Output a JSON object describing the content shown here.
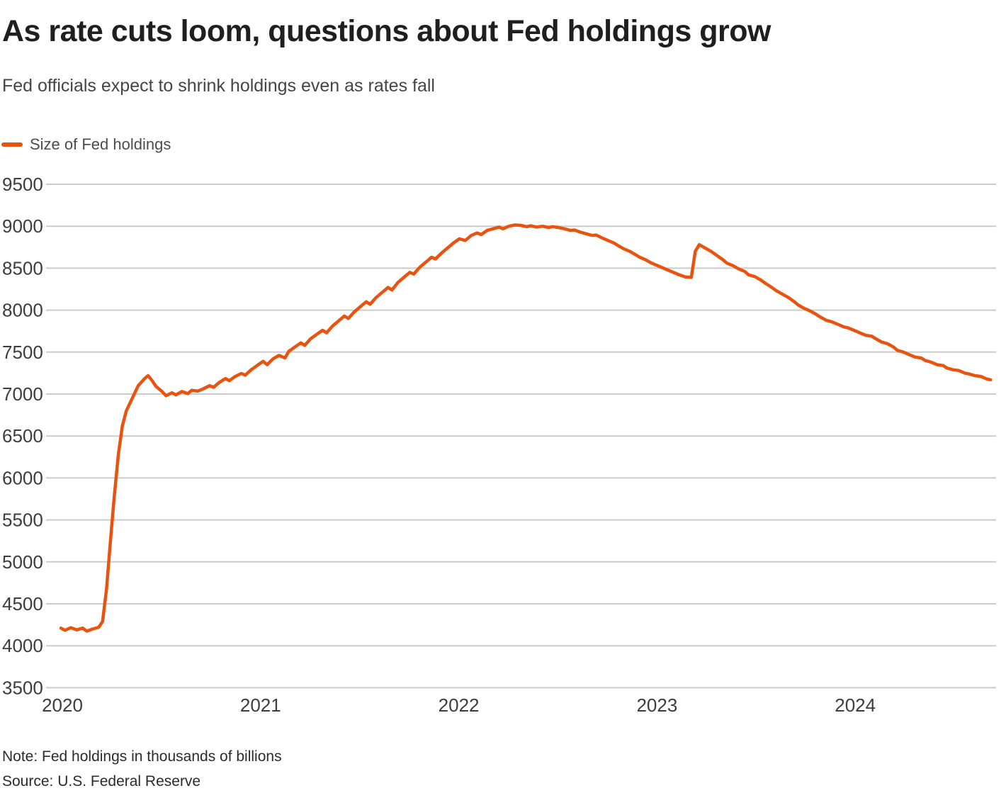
{
  "header": {
    "title": "As rate cuts loom, questions about Fed holdings grow",
    "subtitle": "Fed officials expect to shrink holdings even as rates fall"
  },
  "legend": {
    "label": "Size of Fed holdings"
  },
  "footer": {
    "note": "Note: Fed holdings in thousands of billions",
    "source": "Source: U.S. Federal Reserve"
  },
  "colors": {
    "line": "#E8540F",
    "grid": "#CBCBCB",
    "axis_text": "#3D3D3D"
  },
  "chart_data": {
    "type": "line",
    "title": "Size of Fed holdings",
    "xlabel": "",
    "ylabel": "Fed holdings in thousands of billions",
    "ylim": [
      3500,
      9500
    ],
    "xlim": [
      2020.0,
      2024.72
    ],
    "y_ticks": [
      3500,
      4000,
      4500,
      5000,
      5500,
      6000,
      6500,
      7000,
      7500,
      8000,
      8500,
      9000,
      9500
    ],
    "x_ticks": [
      2020,
      2021,
      2022,
      2023,
      2024
    ],
    "grid": true,
    "legend_position": "top-left",
    "series": [
      {
        "name": "Size of Fed holdings",
        "color": "#E8540F",
        "points": [
          [
            2020.0,
            4210
          ],
          [
            2020.02,
            4185
          ],
          [
            2020.05,
            4215
          ],
          [
            2020.08,
            4190
          ],
          [
            2020.11,
            4210
          ],
          [
            2020.13,
            4175
          ],
          [
            2020.16,
            4200
          ],
          [
            2020.19,
            4220
          ],
          [
            2020.21,
            4290
          ],
          [
            2020.23,
            4680
          ],
          [
            2020.25,
            5250
          ],
          [
            2020.27,
            5800
          ],
          [
            2020.29,
            6280
          ],
          [
            2020.31,
            6620
          ],
          [
            2020.33,
            6800
          ],
          [
            2020.36,
            6950
          ],
          [
            2020.39,
            7100
          ],
          [
            2020.42,
            7180
          ],
          [
            2020.44,
            7220
          ],
          [
            2020.46,
            7160
          ],
          [
            2020.48,
            7090
          ],
          [
            2020.51,
            7030
          ],
          [
            2020.53,
            6980
          ],
          [
            2020.56,
            7015
          ],
          [
            2020.58,
            6990
          ],
          [
            2020.61,
            7030
          ],
          [
            2020.64,
            7005
          ],
          [
            2020.66,
            7045
          ],
          [
            2020.69,
            7035
          ],
          [
            2020.72,
            7065
          ],
          [
            2020.75,
            7100
          ],
          [
            2020.77,
            7080
          ],
          [
            2020.8,
            7140
          ],
          [
            2020.83,
            7185
          ],
          [
            2020.85,
            7160
          ],
          [
            2020.88,
            7210
          ],
          [
            2020.91,
            7245
          ],
          [
            2020.93,
            7225
          ],
          [
            2020.96,
            7290
          ],
          [
            2020.99,
            7340
          ],
          [
            2021.02,
            7390
          ],
          [
            2021.04,
            7350
          ],
          [
            2021.07,
            7420
          ],
          [
            2021.1,
            7460
          ],
          [
            2021.13,
            7430
          ],
          [
            2021.15,
            7510
          ],
          [
            2021.18,
            7560
          ],
          [
            2021.21,
            7610
          ],
          [
            2021.23,
            7580
          ],
          [
            2021.26,
            7660
          ],
          [
            2021.29,
            7710
          ],
          [
            2021.32,
            7760
          ],
          [
            2021.34,
            7730
          ],
          [
            2021.37,
            7810
          ],
          [
            2021.4,
            7870
          ],
          [
            2021.43,
            7930
          ],
          [
            2021.45,
            7900
          ],
          [
            2021.48,
            7980
          ],
          [
            2021.51,
            8040
          ],
          [
            2021.54,
            8100
          ],
          [
            2021.56,
            8070
          ],
          [
            2021.59,
            8150
          ],
          [
            2021.62,
            8210
          ],
          [
            2021.65,
            8270
          ],
          [
            2021.67,
            8240
          ],
          [
            2021.7,
            8330
          ],
          [
            2021.73,
            8390
          ],
          [
            2021.76,
            8450
          ],
          [
            2021.78,
            8430
          ],
          [
            2021.81,
            8510
          ],
          [
            2021.84,
            8570
          ],
          [
            2021.87,
            8630
          ],
          [
            2021.89,
            8610
          ],
          [
            2021.92,
            8680
          ],
          [
            2021.95,
            8740
          ],
          [
            2021.98,
            8800
          ],
          [
            2022.01,
            8850
          ],
          [
            2022.04,
            8830
          ],
          [
            2022.07,
            8890
          ],
          [
            2022.1,
            8920
          ],
          [
            2022.12,
            8900
          ],
          [
            2022.15,
            8950
          ],
          [
            2022.18,
            8970
          ],
          [
            2022.21,
            8990
          ],
          [
            2022.23,
            8970
          ],
          [
            2022.26,
            9000
          ],
          [
            2022.29,
            9015
          ],
          [
            2022.32,
            9010
          ],
          [
            2022.35,
            8995
          ],
          [
            2022.37,
            9005
          ],
          [
            2022.4,
            8990
          ],
          [
            2022.43,
            9000
          ],
          [
            2022.46,
            8985
          ],
          [
            2022.48,
            8995
          ],
          [
            2022.51,
            8985
          ],
          [
            2022.54,
            8970
          ],
          [
            2022.57,
            8950
          ],
          [
            2022.59,
            8955
          ],
          [
            2022.62,
            8930
          ],
          [
            2022.65,
            8910
          ],
          [
            2022.68,
            8890
          ],
          [
            2022.7,
            8895
          ],
          [
            2022.73,
            8860
          ],
          [
            2022.76,
            8830
          ],
          [
            2022.79,
            8800
          ],
          [
            2022.81,
            8770
          ],
          [
            2022.84,
            8730
          ],
          [
            2022.87,
            8700
          ],
          [
            2022.9,
            8660
          ],
          [
            2022.92,
            8630
          ],
          [
            2022.95,
            8600
          ],
          [
            2022.98,
            8560
          ],
          [
            2023.01,
            8530
          ],
          [
            2023.04,
            8500
          ],
          [
            2023.07,
            8470
          ],
          [
            2023.1,
            8440
          ],
          [
            2023.12,
            8420
          ],
          [
            2023.15,
            8395
          ],
          [
            2023.18,
            8390
          ],
          [
            2023.2,
            8700
          ],
          [
            2023.22,
            8780
          ],
          [
            2023.25,
            8740
          ],
          [
            2023.28,
            8700
          ],
          [
            2023.31,
            8650
          ],
          [
            2023.34,
            8600
          ],
          [
            2023.36,
            8560
          ],
          [
            2023.39,
            8530
          ],
          [
            2023.42,
            8490
          ],
          [
            2023.45,
            8460
          ],
          [
            2023.47,
            8420
          ],
          [
            2023.5,
            8400
          ],
          [
            2023.53,
            8360
          ],
          [
            2023.56,
            8310
          ],
          [
            2023.58,
            8280
          ],
          [
            2023.61,
            8230
          ],
          [
            2023.64,
            8190
          ],
          [
            2023.67,
            8150
          ],
          [
            2023.7,
            8100
          ],
          [
            2023.72,
            8060
          ],
          [
            2023.75,
            8020
          ],
          [
            2023.78,
            7990
          ],
          [
            2023.81,
            7950
          ],
          [
            2023.83,
            7920
          ],
          [
            2023.86,
            7880
          ],
          [
            2023.89,
            7860
          ],
          [
            2023.92,
            7830
          ],
          [
            2023.95,
            7800
          ],
          [
            2023.97,
            7790
          ],
          [
            2024.0,
            7760
          ],
          [
            2024.03,
            7730
          ],
          [
            2024.06,
            7700
          ],
          [
            2024.09,
            7690
          ],
          [
            2024.11,
            7660
          ],
          [
            2024.14,
            7620
          ],
          [
            2024.17,
            7600
          ],
          [
            2024.2,
            7560
          ],
          [
            2024.22,
            7520
          ],
          [
            2024.25,
            7500
          ],
          [
            2024.28,
            7470
          ],
          [
            2024.31,
            7440
          ],
          [
            2024.34,
            7430
          ],
          [
            2024.36,
            7400
          ],
          [
            2024.39,
            7380
          ],
          [
            2024.42,
            7350
          ],
          [
            2024.45,
            7340
          ],
          [
            2024.47,
            7310
          ],
          [
            2024.5,
            7290
          ],
          [
            2024.53,
            7280
          ],
          [
            2024.56,
            7250
          ],
          [
            2024.58,
            7240
          ],
          [
            2024.61,
            7220
          ],
          [
            2024.64,
            7210
          ],
          [
            2024.67,
            7180
          ],
          [
            2024.69,
            7170
          ]
        ]
      }
    ]
  }
}
